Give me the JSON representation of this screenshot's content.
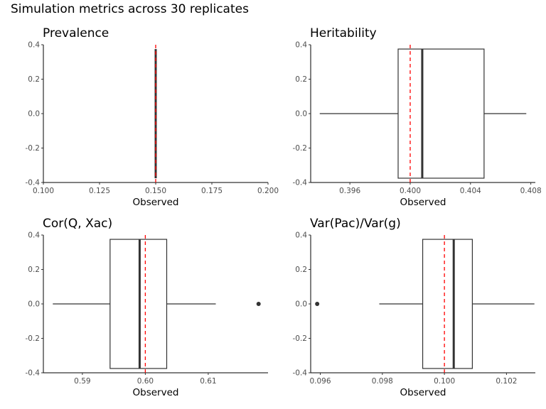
{
  "title": "Simulation metrics across 30 replicates",
  "colors": {
    "box_line": "#333333",
    "reference_line": "#ff0000",
    "axis": "#000000",
    "tick_label": "#4d4d4d"
  },
  "chart_data": [
    {
      "type": "boxplot",
      "title": "Prevalence",
      "xlabel": "Observed",
      "xlim": [
        0.1,
        0.2
      ],
      "xticks": [
        0.1,
        0.125,
        0.15,
        0.175,
        0.2
      ],
      "xtick_labels": [
        "0.100",
        "0.125",
        "0.150",
        "0.175",
        "0.200"
      ],
      "ylim": [
        -0.4,
        0.4
      ],
      "yticks": [
        -0.4,
        -0.2,
        0.0,
        0.2,
        0.4
      ],
      "ytick_labels": [
        "-0.4",
        "-0.2",
        "0.0",
        "0.2",
        "0.4"
      ],
      "box": {
        "min": 0.15,
        "q1": 0.15,
        "median": 0.15,
        "q3": 0.15,
        "max": 0.15,
        "outliers": []
      },
      "reference": 0.15
    },
    {
      "type": "boxplot",
      "title": "Heritability",
      "xlabel": "Observed",
      "xlim": [
        0.3934,
        0.4083
      ],
      "xticks": [
        0.396,
        0.4,
        0.404,
        0.408
      ],
      "xtick_labels": [
        "0.396",
        "0.400",
        "0.404",
        "0.408"
      ],
      "ylim": [
        -0.4,
        0.4
      ],
      "yticks": [
        -0.4,
        -0.2,
        0.0,
        0.2,
        0.4
      ],
      "ytick_labels": [
        "-0.4",
        "-0.2",
        "0.0",
        "0.2",
        "0.4"
      ],
      "box": {
        "min": 0.394,
        "q1": 0.3992,
        "median": 0.4008,
        "q3": 0.4049,
        "max": 0.4077,
        "outliers": []
      },
      "reference": 0.4
    },
    {
      "type": "boxplot",
      "title": "Cor(Q, Xac)",
      "xlabel": "Observed",
      "xlim": [
        0.5838,
        0.6195
      ],
      "xticks": [
        0.59,
        0.6,
        0.61
      ],
      "xtick_labels": [
        "0.59",
        "0.60",
        "0.61"
      ],
      "ylim": [
        -0.4,
        0.4
      ],
      "yticks": [
        -0.4,
        -0.2,
        0.0,
        0.2,
        0.4
      ],
      "ytick_labels": [
        "-0.4",
        "-0.2",
        "0.0",
        "0.2",
        "0.4"
      ],
      "box": {
        "min": 0.5853,
        "q1": 0.5944,
        "median": 0.5991,
        "q3": 0.6034,
        "max": 0.6112,
        "outliers": [
          0.618
        ]
      },
      "reference": 0.6
    },
    {
      "type": "boxplot",
      "title": "Var(Pac)/Var(g)",
      "xlabel": "Observed",
      "xlim": [
        0.09569,
        0.10293
      ],
      "xticks": [
        0.096,
        0.098,
        0.1,
        0.102
      ],
      "xtick_labels": [
        "0.096",
        "0.098",
        "0.100",
        "0.102"
      ],
      "ylim": [
        -0.4,
        0.4
      ],
      "yticks": [
        -0.4,
        -0.2,
        0.0,
        0.2,
        0.4
      ],
      "ytick_labels": [
        "-0.4",
        "-0.2",
        "0.0",
        "0.2",
        "0.4"
      ],
      "box": {
        "min": 0.0979,
        "q1": 0.0993,
        "median": 0.1003,
        "q3": 0.1009,
        "max": 0.1029,
        "outliers": [
          0.0959
        ]
      },
      "reference": 0.1
    }
  ]
}
